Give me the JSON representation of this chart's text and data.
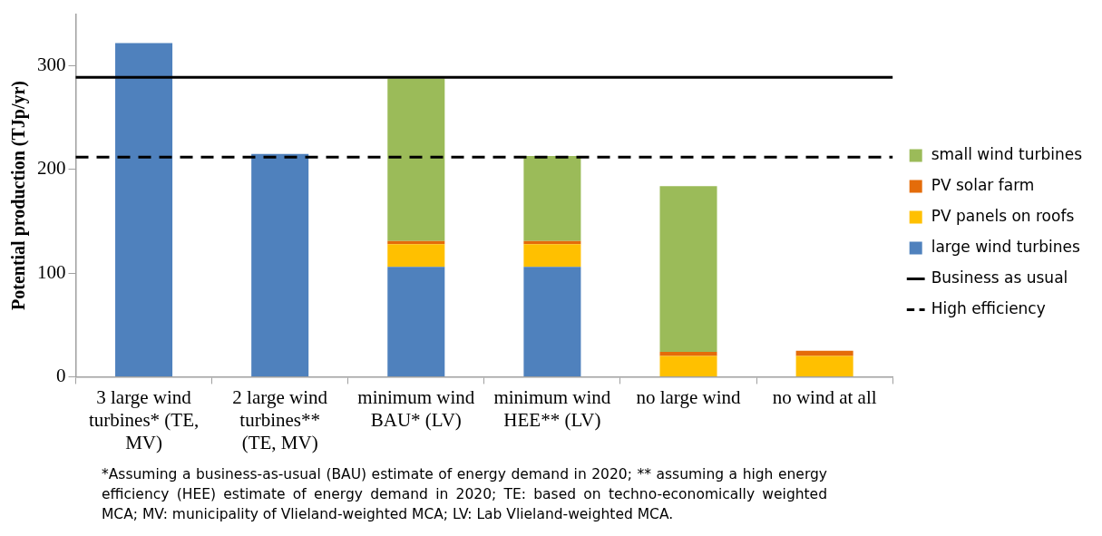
{
  "chart_data": {
    "type": "bar",
    "stacked": true,
    "ylabel": "Potential production (TJp/yr)",
    "categories": [
      "3 large wind turbines* (TE, MV)",
      "2 large wind turbines** (TE, MV)",
      "minimum wind BAU* (LV)",
      "minimum wind HEE** (LV)",
      "no large wind",
      "no wind at all"
    ],
    "series": [
      {
        "name": "large wind turbines",
        "color": "#4f81bd",
        "values": [
          322,
          215,
          106,
          106,
          0,
          0
        ]
      },
      {
        "name": "PV panels on roofs",
        "color": "#ffc000",
        "values": [
          0,
          0,
          22,
          22,
          20,
          20
        ]
      },
      {
        "name": "PV solar farm",
        "color": "#e46c0a",
        "values": [
          0,
          0,
          3,
          3,
          4,
          5
        ]
      },
      {
        "name": "small wind turbines",
        "color": "#9bbb59",
        "values": [
          0,
          0,
          157,
          82,
          160,
          0
        ]
      }
    ],
    "ref_lines": [
      {
        "axis": "y",
        "value": 289,
        "label": "Business as usual",
        "color": "#000000",
        "line_style": "solid"
      },
      {
        "axis": "y",
        "value": 212,
        "label": "High efficiency",
        "color": "#000000",
        "line_style": "dashed"
      }
    ],
    "ylim": [
      0,
      350
    ],
    "yticks": [
      0,
      100,
      200,
      300
    ],
    "grid": false,
    "legend": "right",
    "annotations": [
      "*Assuming a business-as-usual (BAU) estimate of energy demand in 2020; ** assuming a high energy efficiency (HEE) estimate of energy demand in 2020; TE: based on techno-economically weighted MCA; MV: municipality of Vlieland-weighted MCA; LV: Lab Vlieland-weighted MCA."
    ]
  }
}
